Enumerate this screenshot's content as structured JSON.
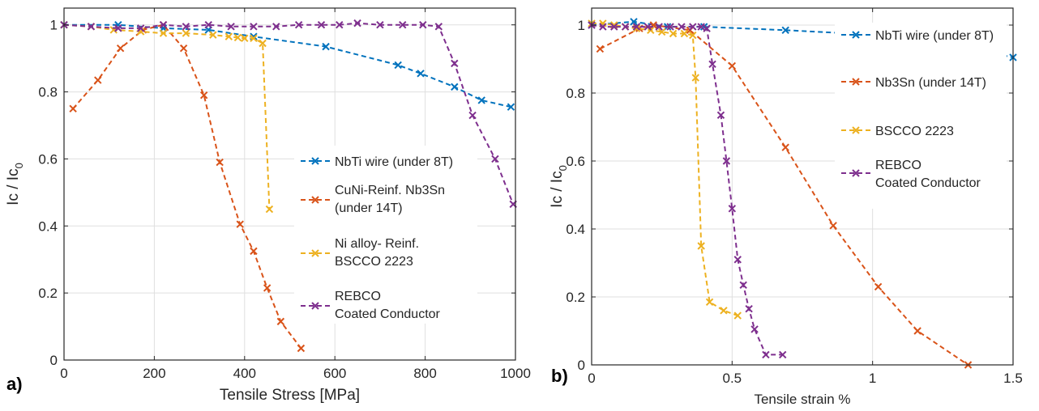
{
  "chart_data": [
    {
      "type": "line",
      "panel_label": "a)",
      "xlabel": "Tensile Stress [MPa]",
      "ylabel_main": "Ic / Ic",
      "ylabel_sub": "0",
      "xlim": [
        0,
        1000
      ],
      "ylim": [
        0,
        1.05
      ],
      "xticks": [
        0,
        200,
        400,
        600,
        800,
        1000
      ],
      "yticks": [
        0,
        0.2,
        0.4,
        0.6,
        0.8,
        1
      ],
      "xtick_labels": [
        "0",
        "200",
        "400",
        "600",
        "800",
        "1000"
      ],
      "ytick_labels": [
        "0",
        "0.2",
        "0.4",
        "0.6",
        "0.8",
        "1"
      ],
      "grid": true,
      "legend_position": "right",
      "series": [
        {
          "name": "NbTi wire (under 8T)",
          "legend_lines": [
            "NbTi wire (under 8T)"
          ],
          "color": "#0072BD",
          "x": [
            0,
            120,
            220,
            320,
            420,
            580,
            740,
            790,
            865,
            925,
            990
          ],
          "y": [
            1.0,
            1.0,
            0.99,
            0.985,
            0.965,
            0.935,
            0.88,
            0.855,
            0.815,
            0.775,
            0.755
          ]
        },
        {
          "name": "CuNi-Reinf. Nb3Sn (under 14T)",
          "legend_lines": [
            "CuNi-Reinf. Nb3Sn",
            "(under 14T)"
          ],
          "color": "#D95319",
          "x": [
            20,
            75,
            125,
            175,
            220,
            265,
            310,
            345,
            390,
            420,
            450,
            480,
            525
          ],
          "y": [
            0.75,
            0.835,
            0.93,
            0.985,
            1.0,
            0.93,
            0.79,
            0.59,
            0.405,
            0.325,
            0.215,
            0.115,
            0.035
          ]
        },
        {
          "name": "Ni alloy- Reinf. BSCCO 2223",
          "legend_lines": [
            "Ni alloy- Reinf.",
            "BSCCO 2223"
          ],
          "color": "#EDB120",
          "x": [
            0,
            60,
            110,
            170,
            220,
            270,
            330,
            365,
            385,
            400,
            420,
            440,
            455
          ],
          "y": [
            1.0,
            0.995,
            0.985,
            0.98,
            0.975,
            0.975,
            0.97,
            0.965,
            0.962,
            0.96,
            0.96,
            0.945,
            0.45
          ]
        },
        {
          "name": "REBCO Coated Conductor",
          "legend_lines": [
            "REBCO",
            "Coated Conductor"
          ],
          "color": "#7E2F8E",
          "x": [
            0,
            60,
            120,
            170,
            220,
            270,
            320,
            370,
            420,
            470,
            520,
            570,
            610,
            650,
            700,
            750,
            795,
            830,
            865,
            905,
            955,
            995
          ],
          "y": [
            1.0,
            0.995,
            0.99,
            0.99,
            1.0,
            0.995,
            1.0,
            0.995,
            0.995,
            0.995,
            1.0,
            1.0,
            1.0,
            1.005,
            1.0,
            1.0,
            1.0,
            0.995,
            0.885,
            0.73,
            0.6,
            0.465
          ]
        }
      ]
    },
    {
      "type": "line",
      "panel_label": "b)",
      "xlabel": "Tensile strain %",
      "ylabel_main": "Ic / Ic",
      "ylabel_sub": "0",
      "xlim": [
        0,
        1.5
      ],
      "ylim": [
        0,
        1.05
      ],
      "xticks": [
        0,
        0.5,
        1,
        1.5
      ],
      "yticks": [
        0,
        0.2,
        0.4,
        0.6,
        0.8,
        1
      ],
      "xtick_labels": [
        "0",
        "0.5",
        "1",
        "1.5"
      ],
      "ytick_labels": [
        "0",
        "0.2",
        "0.4",
        "0.6",
        "0.8",
        "1"
      ],
      "grid": true,
      "legend_position": "top-right",
      "series": [
        {
          "name": "NbTi wire (under 8T)",
          "legend_lines": [
            "NbTi wire (under 8T)"
          ],
          "color": "#0072BD",
          "x": [
            0,
            0.15,
            0.27,
            0.4,
            0.69,
            1.05,
            1.44,
            1.5
          ],
          "y": [
            1.0,
            1.01,
            0.995,
            0.995,
            0.985,
            0.97,
            0.915,
            0.905
          ]
        },
        {
          "name": "Nb3Sn (under 14T)",
          "legend_lines": [
            "Nb3Sn (under 14T)"
          ],
          "color": "#D95319",
          "x": [
            0.03,
            0.17,
            0.22,
            0.35,
            0.5,
            0.69,
            0.86,
            1.02,
            1.16,
            1.34
          ],
          "y": [
            0.93,
            0.99,
            1.0,
            0.985,
            0.88,
            0.64,
            0.41,
            0.23,
            0.1,
            0.0
          ]
        },
        {
          "name": "BSCCO 2223",
          "legend_lines": [
            "BSCCO 2223"
          ],
          "color": "#EDB120",
          "x": [
            0,
            0.04,
            0.08,
            0.12,
            0.16,
            0.21,
            0.25,
            0.29,
            0.33,
            0.36,
            0.37,
            0.39,
            0.42,
            0.47,
            0.52
          ],
          "y": [
            1.005,
            1.005,
            1.0,
            0.995,
            0.99,
            0.985,
            0.98,
            0.975,
            0.975,
            0.97,
            0.845,
            0.35,
            0.185,
            0.16,
            0.145
          ]
        },
        {
          "name": "REBCO Coated Conductor",
          "legend_lines": [
            "REBCO",
            "Coated Conductor"
          ],
          "color": "#7E2F8E",
          "x": [
            0,
            0.04,
            0.08,
            0.12,
            0.16,
            0.2,
            0.24,
            0.28,
            0.32,
            0.36,
            0.39,
            0.41,
            0.43,
            0.46,
            0.48,
            0.5,
            0.52,
            0.54,
            0.56,
            0.58,
            0.62,
            0.68
          ],
          "y": [
            1.0,
            0.995,
            0.995,
            0.995,
            0.995,
            0.995,
            0.995,
            0.995,
            0.995,
            0.995,
            0.995,
            0.99,
            0.885,
            0.735,
            0.6,
            0.46,
            0.31,
            0.235,
            0.165,
            0.105,
            0.03,
            0.03
          ]
        }
      ]
    }
  ]
}
